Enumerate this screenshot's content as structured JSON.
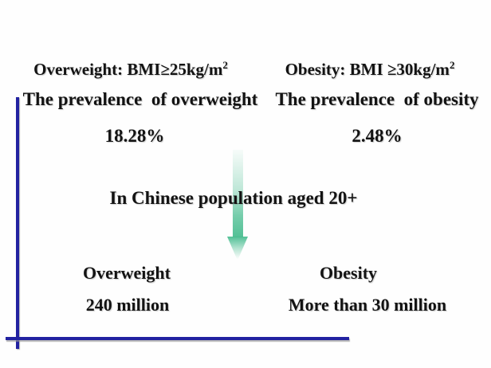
{
  "overweight_column": {
    "definition": "Overweight: BMI≥25kg/m",
    "definition_exponent": "2",
    "prevalence_label": "The prevalence  of overweight",
    "prevalence_value": "18.28%",
    "category_label": "Overweight",
    "count": "240 million"
  },
  "obesity_column": {
    "definition": "Obesity: BMI ≥30kg/m",
    "definition_exponent": "2",
    "prevalence_label": "The prevalence  of obesity",
    "prevalence_value": "2.48%",
    "category_label": "Obesity",
    "count": "More than 30 million"
  },
  "center": {
    "context_text": "In Chinese population aged 20+"
  },
  "colors": {
    "text": "#131313",
    "line_blue": "#2222a1",
    "arrow_green": "#49bd90",
    "background": "#fefefe"
  }
}
